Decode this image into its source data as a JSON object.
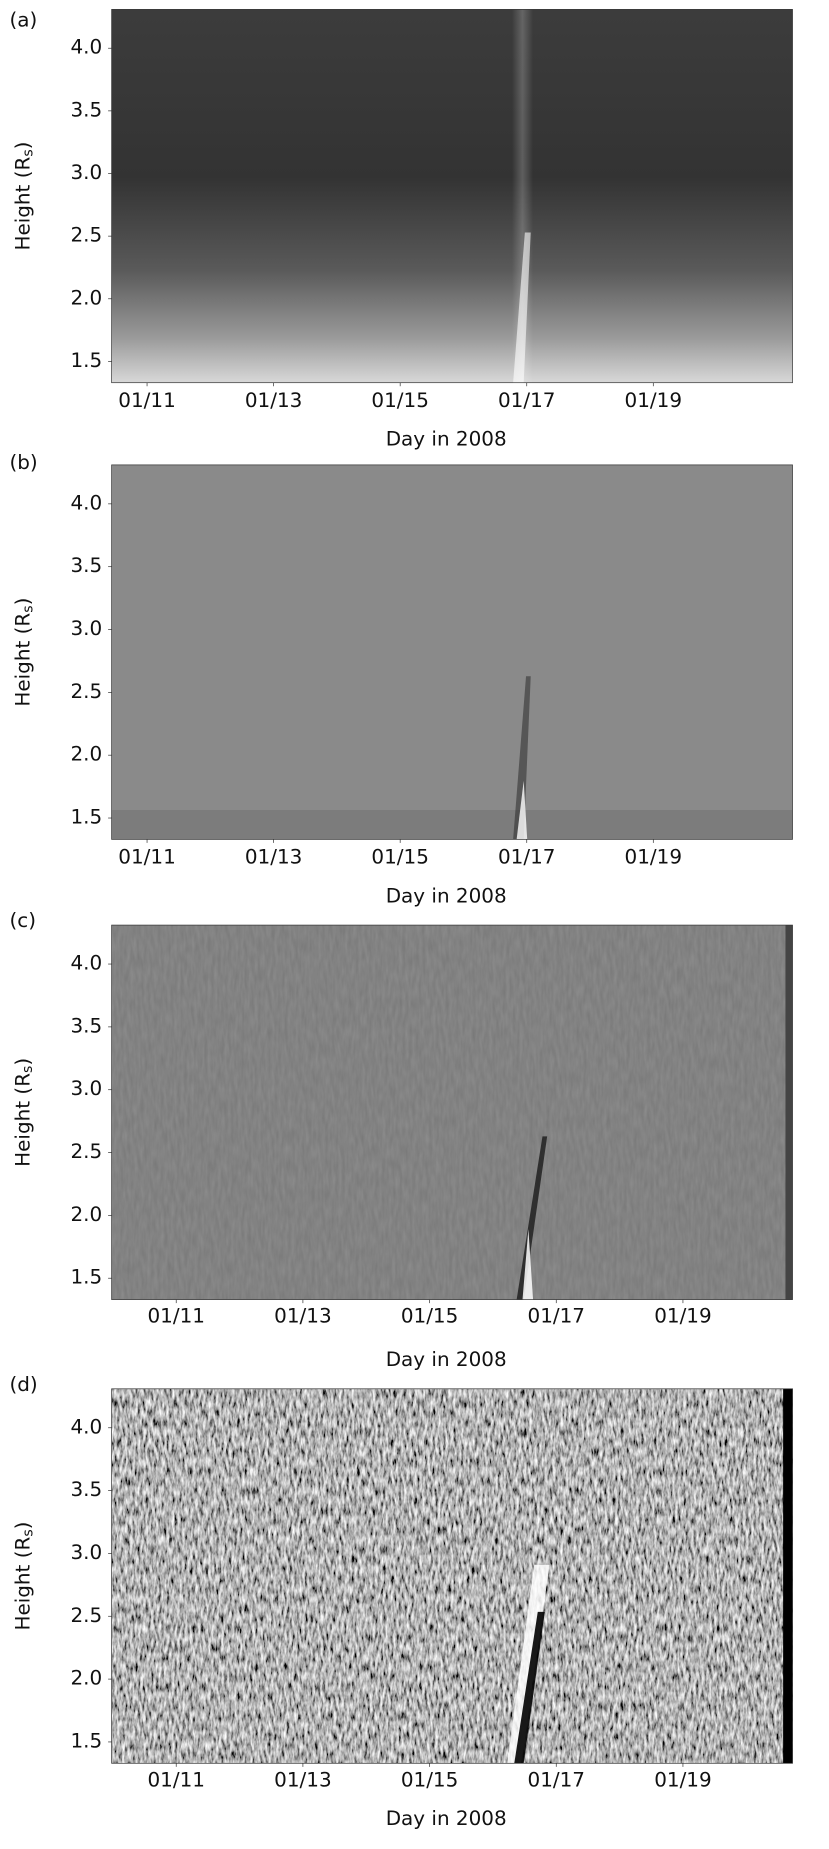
{
  "chart_data": [
    {
      "type": "heatmap",
      "panel_label": "(a)",
      "xlabel": "Day in 2008",
      "ylabel": [
        "Height (R",
        "s",
        ")"
      ],
      "xlim": [
        10.44,
        21.2
      ],
      "xticks": [
        {
          "value": 11,
          "label": "01/11"
        },
        {
          "value": 13,
          "label": "01/13"
        },
        {
          "value": 15,
          "label": "01/15"
        },
        {
          "value": 17,
          "label": "01/17"
        },
        {
          "value": 19,
          "label": "01/19"
        }
      ],
      "ylim": [
        1.33,
        4.31
      ],
      "yticks": [
        1.5,
        {
          "value": 2,
          "label": "2.0"
        },
        2.5,
        {
          "value": 3,
          "label": "3.0"
        },
        3.5,
        {
          "value": 4,
          "label": "4.0"
        }
      ]
    },
    {
      "type": "heatmap",
      "panel_label": "(b)",
      "xlabel": "Day in 2008",
      "ylabel": [
        "Height (R",
        "s",
        ")"
      ],
      "xlim": [
        10.44,
        21.2
      ],
      "xticks": [
        {
          "value": 11,
          "label": "01/11"
        },
        {
          "value": 13,
          "label": "01/13"
        },
        {
          "value": 15,
          "label": "01/15"
        },
        {
          "value": 17,
          "label": "01/17"
        },
        {
          "value": 19,
          "label": "01/19"
        }
      ],
      "ylim": [
        1.33,
        4.31
      ],
      "yticks": [
        1.5,
        {
          "value": 2,
          "label": "2.0"
        },
        2.5,
        {
          "value": 3,
          "label": "3.0"
        },
        3.5,
        {
          "value": 4,
          "label": "4.0"
        }
      ]
    },
    {
      "type": "heatmap",
      "panel_label": "(c)",
      "xlabel": "Day in 2008",
      "ylabel": [
        "Height (R",
        "s",
        ")"
      ],
      "xlim": [
        9.98,
        20.73
      ],
      "xticks": [
        {
          "value": 11,
          "label": "01/11"
        },
        {
          "value": 13,
          "label": "01/13"
        },
        {
          "value": 15,
          "label": "01/15"
        },
        {
          "value": 17,
          "label": "01/17"
        },
        {
          "value": 19,
          "label": "01/19"
        }
      ],
      "ylim": [
        1.33,
        4.31
      ],
      "yticks": [
        1.5,
        {
          "value": 2,
          "label": "2.0"
        },
        2.5,
        {
          "value": 3,
          "label": "3.0"
        },
        3.5,
        {
          "value": 4,
          "label": "4.0"
        }
      ]
    },
    {
      "type": "heatmap",
      "panel_label": "(d)",
      "xlabel": "Day in 2008",
      "ylabel": [
        "Height (R",
        "s",
        ")"
      ],
      "xlim": [
        9.98,
        20.73
      ],
      "xticks": [
        {
          "value": 11,
          "label": "01/11"
        },
        {
          "value": 13,
          "label": "01/13"
        },
        {
          "value": 15,
          "label": "01/15"
        },
        {
          "value": 17,
          "label": "01/17"
        },
        {
          "value": 19,
          "label": "01/19"
        }
      ],
      "ylim": [
        1.33,
        4.31
      ],
      "yticks": [
        1.5,
        {
          "value": 2,
          "label": "2.0"
        },
        2.5,
        {
          "value": 3,
          "label": "3.0"
        },
        3.5,
        {
          "value": 4,
          "label": "4.0"
        }
      ]
    }
  ]
}
